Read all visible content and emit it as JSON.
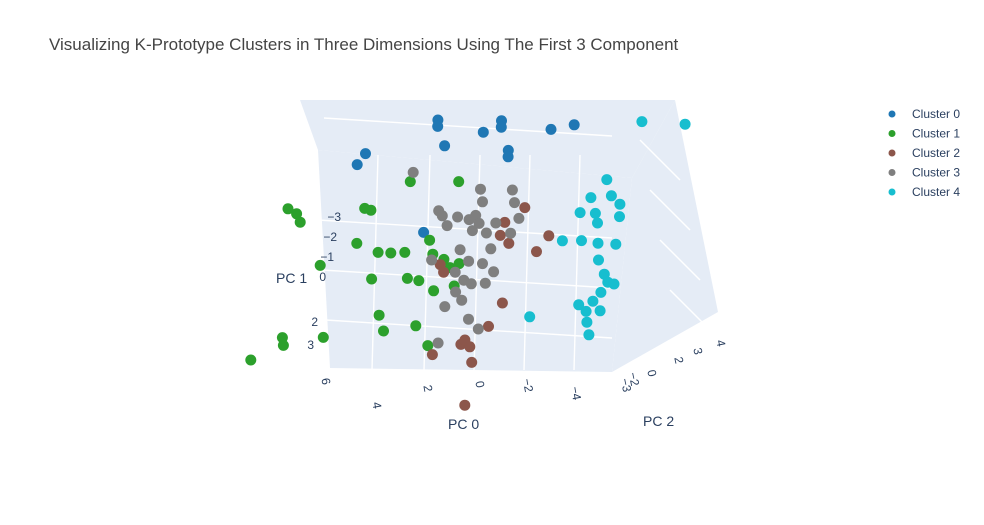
{
  "chart_data": {
    "type": "scatter",
    "title": "Visualizing K-Prototype Clusters in Three Dimensions Using The First 3 Component",
    "axes": {
      "x": {
        "label": "PC 0",
        "ticks": [
          "6",
          "4",
          "2",
          "0",
          "−2",
          "−4"
        ]
      },
      "y": {
        "label": "PC 1",
        "ticks": [
          "−3",
          "−2",
          "−1",
          "0",
          "2",
          "3"
        ]
      },
      "z": {
        "label": "PC 2",
        "ticks": [
          "−3",
          "−2",
          "0",
          "2",
          "3",
          "4"
        ]
      }
    },
    "grid": true,
    "legend_position": "top-right",
    "series": [
      {
        "name": "Cluster 0",
        "color": "#1f77b4",
        "points": [
          {
            "pc0": 5.2,
            "pc1": -3.4,
            "pc2": 1.0
          },
          {
            "pc0": 5.6,
            "pc1": -2.9,
            "pc2": 1.2
          },
          {
            "pc0": 3.2,
            "pc1": -3.8,
            "pc2": 2.6
          },
          {
            "pc0": 3.1,
            "pc1": -3.7,
            "pc2": 2.4
          },
          {
            "pc0": 2.6,
            "pc1": -3.3,
            "pc2": 2.0
          },
          {
            "pc0": 1.5,
            "pc1": -3.4,
            "pc2": 2.8
          },
          {
            "pc0": 1.0,
            "pc1": -3.6,
            "pc2": 3.2
          },
          {
            "pc0": 0.9,
            "pc1": -3.5,
            "pc2": 3.0
          },
          {
            "pc0": 0.2,
            "pc1": -3.2,
            "pc2": 2.2
          },
          {
            "pc0": 0.1,
            "pc1": -3.1,
            "pc2": 2.0
          },
          {
            "pc0": -1.0,
            "pc1": -3.5,
            "pc2": 3.1
          },
          {
            "pc0": -1.8,
            "pc1": -3.6,
            "pc2": 3.3
          },
          {
            "pc0": 2.3,
            "pc1": -1.5,
            "pc2": 0.0
          }
        ]
      },
      {
        "name": "Cluster 1",
        "color": "#2ca02c",
        "points": [
          {
            "pc0": 7.5,
            "pc1": -2.1,
            "pc2": -0.3
          },
          {
            "pc0": 7.2,
            "pc1": -1.9,
            "pc2": -0.2
          },
          {
            "pc0": 6.9,
            "pc1": -1.8,
            "pc2": -0.5
          },
          {
            "pc0": 4.6,
            "pc1": -2.2,
            "pc2": -0.1
          },
          {
            "pc0": 4.4,
            "pc1": -2.1,
            "pc2": 0.0
          },
          {
            "pc0": 3.3,
            "pc1": -2.7,
            "pc2": 0.8
          },
          {
            "pc0": 1.6,
            "pc1": -2.6,
            "pc2": 1.2
          },
          {
            "pc0": 4.6,
            "pc1": -1.3,
            "pc2": -0.6
          },
          {
            "pc0": 3.8,
            "pc1": -1.0,
            "pc2": -0.5
          },
          {
            "pc0": 3.4,
            "pc1": -0.9,
            "pc2": -0.3
          },
          {
            "pc0": 2.9,
            "pc1": -0.9,
            "pc2": -0.2
          },
          {
            "pc0": 2.1,
            "pc1": -1.2,
            "pc2": 0.1
          },
          {
            "pc0": 1.9,
            "pc1": -0.8,
            "pc2": 0.0
          },
          {
            "pc0": 1.5,
            "pc1": -0.6,
            "pc2": 0.1
          },
          {
            "pc0": 1.2,
            "pc1": -0.4,
            "pc2": 0.0
          },
          {
            "pc0": 5.8,
            "pc1": -0.7,
            "pc2": -1.0
          },
          {
            "pc0": 4.0,
            "pc1": -0.1,
            "pc2": -0.5
          },
          {
            "pc0": 2.7,
            "pc1": -0.1,
            "pc2": -0.3
          },
          {
            "pc0": 2.3,
            "pc1": 0.0,
            "pc2": -0.2
          },
          {
            "pc0": 1.7,
            "pc1": 0.3,
            "pc2": -0.2
          },
          {
            "pc0": 1.0,
            "pc1": 0.2,
            "pc2": 0.0
          },
          {
            "pc0": 0.9,
            "pc1": -0.5,
            "pc2": 0.1
          },
          {
            "pc0": 3.4,
            "pc1": 0.8,
            "pc2": -1.0
          },
          {
            "pc0": 3.1,
            "pc1": 1.2,
            "pc2": -1.2
          },
          {
            "pc0": 1.9,
            "pc1": 1.0,
            "pc2": -1.1
          },
          {
            "pc0": 1.2,
            "pc1": 1.4,
            "pc2": -1.5
          },
          {
            "pc0": 5.3,
            "pc1": 1.4,
            "pc2": -1.5
          },
          {
            "pc0": 6.7,
            "pc1": 1.6,
            "pc2": -1.8
          },
          {
            "pc0": 6.8,
            "pc1": 1.4,
            "pc2": -1.7
          },
          {
            "pc0": 7.8,
            "pc1": 2.0,
            "pc2": -2.1
          }
        ]
      },
      {
        "name": "Cluster 2",
        "color": "#8c564b",
        "points": [
          {
            "pc0": -1.7,
            "pc1": -2.7,
            "pc2": -0.2
          },
          {
            "pc0": -0.9,
            "pc1": -2.1,
            "pc2": -0.1
          },
          {
            "pc0": -0.7,
            "pc1": -1.6,
            "pc2": 0.0
          },
          {
            "pc0": -1.0,
            "pc1": -1.3,
            "pc2": 0.1
          },
          {
            "pc0": -2.5,
            "pc1": -1.6,
            "pc2": 0.2
          },
          {
            "pc0": -2.1,
            "pc1": -1.1,
            "pc2": 0.1
          },
          {
            "pc0": 1.4,
            "pc1": -0.7,
            "pc2": -0.4
          },
          {
            "pc0": 1.3,
            "pc1": -0.4,
            "pc2": -0.3
          },
          {
            "pc0": -1.2,
            "pc1": 0.3,
            "pc2": -0.6
          },
          {
            "pc0": -0.8,
            "pc1": 1.0,
            "pc2": -0.8
          },
          {
            "pc0": 0.1,
            "pc1": 1.5,
            "pc2": -1.1
          },
          {
            "pc0": 0.0,
            "pc1": 1.4,
            "pc2": -1.0
          },
          {
            "pc0": -0.3,
            "pc1": 1.5,
            "pc2": -1.2
          },
          {
            "pc0": 1.1,
            "pc1": 1.8,
            "pc2": -1.3
          },
          {
            "pc0": -0.5,
            "pc1": 1.9,
            "pc2": -1.4
          },
          {
            "pc0": -0.6,
            "pc1": 3.0,
            "pc2": -2.0
          }
        ]
      },
      {
        "name": "Cluster 3",
        "color": "#7f7f7f",
        "points": [
          {
            "pc0": 3.3,
            "pc1": -2.9,
            "pc2": 1.0
          },
          {
            "pc0": 0.4,
            "pc1": -2.8,
            "pc2": 0.5
          },
          {
            "pc0": -0.8,
            "pc1": -2.8,
            "pc2": 0.6
          },
          {
            "pc0": 0.2,
            "pc1": -2.5,
            "pc2": 0.3
          },
          {
            "pc0": -1.0,
            "pc1": -2.5,
            "pc2": 0.4
          },
          {
            "pc0": 1.8,
            "pc1": -2.2,
            "pc2": 0.1
          },
          {
            "pc0": 1.6,
            "pc1": -2.1,
            "pc2": 0.0
          },
          {
            "pc0": 1.0,
            "pc1": -2.1,
            "pc2": 0.0
          },
          {
            "pc0": 0.5,
            "pc1": -2.1,
            "pc2": -0.1
          },
          {
            "pc0": 0.3,
            "pc1": -2.2,
            "pc2": 0.0
          },
          {
            "pc0": 0.1,
            "pc1": -2.0,
            "pc2": -0.1
          },
          {
            "pc0": -0.5,
            "pc1": -2.0,
            "pc2": 0.0
          },
          {
            "pc0": -1.3,
            "pc1": -2.1,
            "pc2": 0.2
          },
          {
            "pc0": 1.3,
            "pc1": -1.9,
            "pc2": -0.2
          },
          {
            "pc0": 0.3,
            "pc1": -1.8,
            "pc2": -0.2
          },
          {
            "pc0": -0.2,
            "pc1": -1.7,
            "pc2": -0.1
          },
          {
            "pc0": -1.1,
            "pc1": -1.7,
            "pc2": 0.0
          },
          {
            "pc0": 0.6,
            "pc1": -1.3,
            "pc2": -0.5
          },
          {
            "pc0": -0.5,
            "pc1": -1.3,
            "pc2": -0.3
          },
          {
            "pc0": 1.6,
            "pc1": -1.0,
            "pc2": -0.7
          },
          {
            "pc0": 0.2,
            "pc1": -1.0,
            "pc2": -0.6
          },
          {
            "pc0": -0.3,
            "pc1": -0.9,
            "pc2": -0.5
          },
          {
            "pc0": 0.7,
            "pc1": -0.6,
            "pc2": -0.6
          },
          {
            "pc0": -0.7,
            "pc1": -0.6,
            "pc2": -0.4
          },
          {
            "pc0": 0.4,
            "pc1": -0.3,
            "pc2": -0.5
          },
          {
            "pc0": 0.1,
            "pc1": -0.2,
            "pc2": -0.5
          },
          {
            "pc0": -0.4,
            "pc1": -0.2,
            "pc2": -0.4
          },
          {
            "pc0": 0.6,
            "pc1": 0.0,
            "pc2": -0.7
          },
          {
            "pc0": 0.3,
            "pc1": 0.2,
            "pc2": -0.8
          },
          {
            "pc0": 0.9,
            "pc1": 0.4,
            "pc2": -0.9
          },
          {
            "pc0": -0.1,
            "pc1": 0.7,
            "pc2": -1.0
          },
          {
            "pc0": -0.5,
            "pc1": 1.0,
            "pc2": -1.0
          },
          {
            "pc0": 0.9,
            "pc1": 1.4,
            "pc2": -1.3
          }
        ]
      },
      {
        "name": "Cluster 4",
        "color": "#17becf",
        "points": [
          {
            "pc0": -4.2,
            "pc1": -3.6,
            "pc2": 3.8
          },
          {
            "pc0": -5.7,
            "pc1": -3.4,
            "pc2": 4.2
          },
          {
            "pc0": -3.8,
            "pc1": -2.6,
            "pc2": 2.0
          },
          {
            "pc0": -3.5,
            "pc1": -2.3,
            "pc2": 1.4
          },
          {
            "pc0": -4.2,
            "pc1": -2.3,
            "pc2": 1.6
          },
          {
            "pc0": -4.6,
            "pc1": -2.1,
            "pc2": 1.5
          },
          {
            "pc0": -3.3,
            "pc1": -2.0,
            "pc2": 1.0
          },
          {
            "pc0": -3.8,
            "pc1": -1.9,
            "pc2": 1.2
          },
          {
            "pc0": -4.7,
            "pc1": -1.8,
            "pc2": 1.3
          },
          {
            "pc0": -4.0,
            "pc1": -1.7,
            "pc2": 1.0
          },
          {
            "pc0": -3.6,
            "pc1": -1.3,
            "pc2": 0.6
          },
          {
            "pc0": -2.9,
            "pc1": -1.3,
            "pc2": 0.5
          },
          {
            "pc0": -4.2,
            "pc1": -1.2,
            "pc2": 0.7
          },
          {
            "pc0": -4.8,
            "pc1": -1.1,
            "pc2": 0.9
          },
          {
            "pc0": -4.3,
            "pc1": -0.7,
            "pc2": 0.6
          },
          {
            "pc0": -4.6,
            "pc1": -0.3,
            "pc2": 0.5
          },
          {
            "pc0": -4.8,
            "pc1": -0.1,
            "pc2": 0.4
          },
          {
            "pc0": -5.0,
            "pc1": 0.0,
            "pc2": 0.5
          },
          {
            "pc0": -4.6,
            "pc1": 0.2,
            "pc2": 0.3
          },
          {
            "pc0": -4.4,
            "pc1": 0.4,
            "pc2": 0.1
          },
          {
            "pc0": -3.9,
            "pc1": 0.5,
            "pc2": 0.0
          },
          {
            "pc0": -4.2,
            "pc1": 0.7,
            "pc2": 0.0
          },
          {
            "pc0": -4.7,
            "pc1": 0.7,
            "pc2": 0.1
          },
          {
            "pc0": -2.2,
            "pc1": 0.8,
            "pc2": -0.4
          },
          {
            "pc0": -4.3,
            "pc1": 1.0,
            "pc2": -0.1
          },
          {
            "pc0": -4.5,
            "pc1": 1.3,
            "pc2": -0.3
          }
        ]
      }
    ]
  }
}
